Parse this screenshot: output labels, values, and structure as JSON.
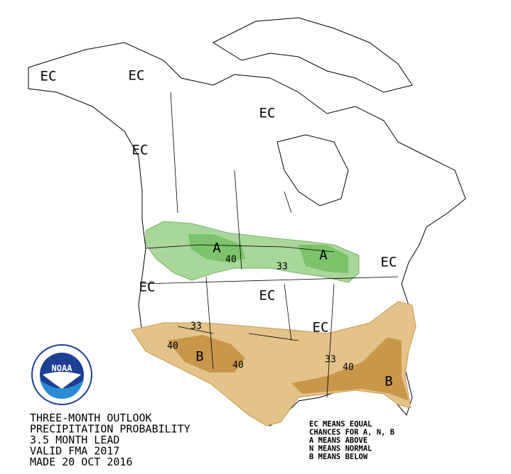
{
  "title_lines": [
    "THREE-MONTH OUTLOOK",
    "PRECIPITATION PROBABILITY",
    "3.5 MONTH LEAD",
    "VALID FMA 2017",
    "MADE 20 OCT 2016"
  ],
  "legend_lines": [
    "EC MEANS EQUAL",
    "CHANCES FOR A, N, B",
    "A MEANS ABOVE",
    "N MEANS NORMAL",
    "B MEANS BELOW"
  ],
  "logo": {
    "text": "NOAA"
  },
  "map_labels": [
    "EC",
    "EC",
    "EC",
    "EC",
    "A",
    "40",
    "33",
    "A",
    "EC",
    "EC",
    "EC",
    "33",
    "EC",
    "40",
    "B",
    "40",
    "33",
    "40",
    "B"
  ]
}
